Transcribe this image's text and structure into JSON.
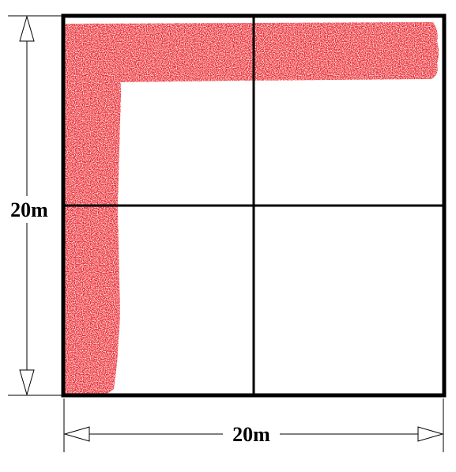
{
  "diagram": {
    "vertical_dimension_label": "20m",
    "horizontal_dimension_label": "20m"
  },
  "colors": {
    "outline": "#000000",
    "shaded_region": "#e8141c",
    "background": "#ffffff"
  }
}
